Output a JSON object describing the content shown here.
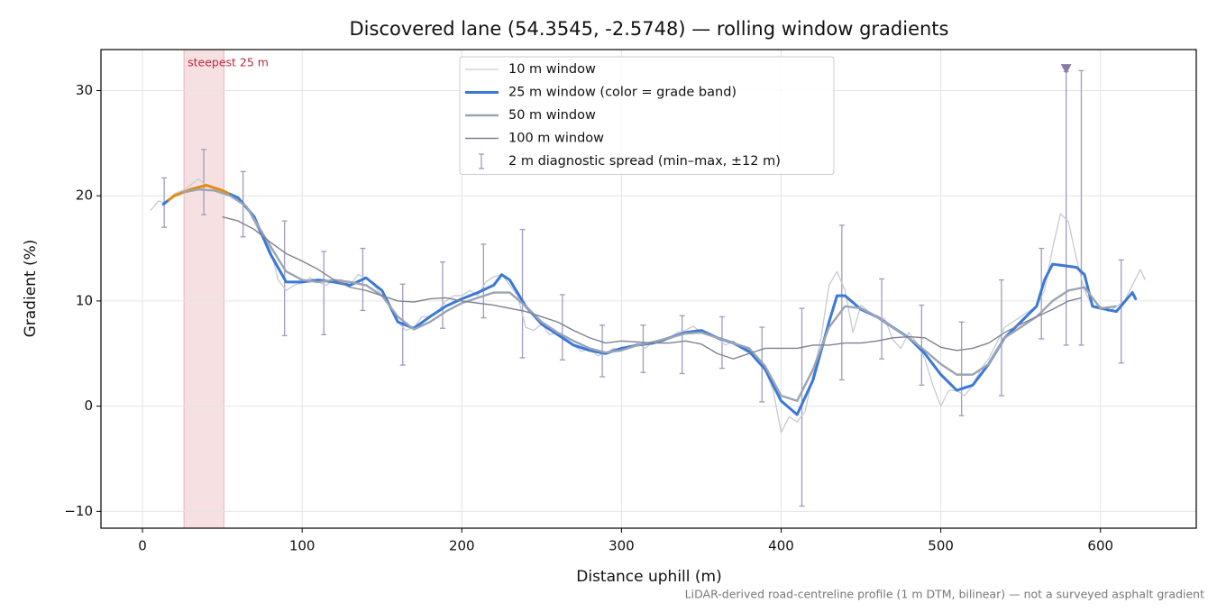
{
  "chart_data": {
    "type": "line",
    "title": "Discovered lane (54.3545, -2.5748) — rolling window gradients",
    "xlabel": "Distance uphill (m)",
    "ylabel": "Gradient (%)",
    "footnote": "LiDAR-derived road-centreline profile (1 m DTM, bilinear) — not a surveyed asphalt gradient",
    "xlim": [
      -26,
      660
    ],
    "ylim": [
      -11.6,
      33.9
    ],
    "xticks": [
      0,
      100,
      200,
      300,
      400,
      500,
      600
    ],
    "yticks": [
      {
        "value": -10,
        "label": "−10"
      },
      0,
      10,
      20,
      30
    ],
    "grid": true,
    "legend": "upper center",
    "highlight": {
      "x": [
        26,
        51
      ],
      "label": "steepest 25 m",
      "color": "#e8a6ad",
      "label_color": "#c0283a"
    },
    "series": [
      {
        "name": "10 m window",
        "color": "#c6cad2",
        "linewidth": 1.3,
        "x": [
          5,
          10,
          15,
          20,
          25,
          30,
          35,
          40,
          45,
          50,
          55,
          60,
          65,
          70,
          75,
          80,
          85,
          90,
          95,
          100,
          105,
          110,
          115,
          120,
          125,
          130,
          135,
          140,
          145,
          150,
          155,
          160,
          165,
          170,
          175,
          180,
          185,
          190,
          195,
          200,
          205,
          210,
          215,
          220,
          225,
          230,
          235,
          240,
          245,
          250,
          255,
          260,
          265,
          270,
          275,
          280,
          285,
          290,
          295,
          300,
          305,
          310,
          315,
          320,
          325,
          330,
          335,
          340,
          345,
          350,
          355,
          360,
          365,
          370,
          375,
          380,
          385,
          390,
          395,
          400,
          405,
          410,
          415,
          420,
          425,
          430,
          435,
          440,
          445,
          450,
          455,
          460,
          465,
          470,
          475,
          480,
          485,
          490,
          495,
          500,
          505,
          510,
          515,
          520,
          525,
          530,
          535,
          540,
          545,
          550,
          555,
          560,
          565,
          570,
          575,
          580,
          585,
          590,
          595,
          600,
          605,
          610,
          615,
          620,
          625,
          628
        ],
        "values": [
          18.6,
          19.5,
          19.3,
          20.2,
          20.5,
          21.0,
          21.6,
          21.0,
          20.8,
          20.5,
          20.0,
          19.8,
          19.0,
          17.5,
          16,
          15,
          12,
          11,
          11.5,
          11.7,
          12.2,
          11.8,
          11.5,
          12,
          12,
          11.5,
          12.5,
          12.2,
          11.5,
          10.5,
          9.5,
          8,
          7.2,
          7.5,
          8.5,
          8.5,
          9,
          10,
          10.5,
          10.5,
          11,
          10.5,
          11.8,
          12.3,
          12.5,
          11.5,
          10.5,
          7.5,
          7.2,
          7.8,
          6.8,
          7,
          6.5,
          5.8,
          5.2,
          5.5,
          4.8,
          5,
          5.5,
          5.3,
          5.5,
          6,
          5.5,
          6.2,
          6,
          6.5,
          7,
          7.2,
          7.6,
          7,
          6.8,
          6.5,
          5.8,
          6.2,
          5.5,
          5,
          4.5,
          3.5,
          1.5,
          -2.5,
          -1,
          -1.5,
          -0.5,
          3,
          6.5,
          11.5,
          12.8,
          11,
          7,
          9.6,
          9,
          8.5,
          8.3,
          6.3,
          5.5,
          7,
          6,
          4.5,
          2,
          0,
          1.5,
          1.5,
          1,
          2,
          3.5,
          4.5,
          6,
          7.5,
          8,
          8.5,
          9,
          9.5,
          11,
          15,
          18.3,
          17.5,
          14,
          11,
          9.5,
          9.5,
          9,
          9.5,
          10,
          11.5,
          13,
          12
        ]
      },
      {
        "name": "25 m window (color = grade band)",
        "color": "#3a78d8",
        "linewidth": 3,
        "x": [
          13,
          20,
          30,
          40,
          50,
          60,
          70,
          80,
          90,
          100,
          110,
          120,
          130,
          140,
          150,
          160,
          170,
          180,
          190,
          200,
          210,
          220,
          225,
          230,
          240,
          250,
          260,
          270,
          280,
          290,
          300,
          310,
          320,
          330,
          340,
          350,
          360,
          370,
          380,
          390,
          400,
          410,
          420,
          430,
          435,
          440,
          450,
          460,
          470,
          480,
          490,
          500,
          510,
          520,
          530,
          540,
          550,
          560,
          565,
          570,
          580,
          585,
          590,
          595,
          600,
          610,
          620,
          622
        ],
        "values": [
          19.2,
          20.0,
          20.6,
          21.0,
          20.5,
          19.8,
          18.0,
          14.5,
          11.8,
          11.8,
          12,
          11.8,
          11.5,
          12.2,
          11,
          8,
          7.4,
          8.5,
          9.5,
          10.2,
          10.8,
          11.5,
          12.5,
          12,
          9.5,
          7.8,
          6.8,
          5.8,
          5.3,
          5,
          5.5,
          5.8,
          6,
          6.5,
          7,
          7.2,
          6.5,
          6,
          5.2,
          3.5,
          0.5,
          -0.8,
          2.5,
          8,
          10.5,
          10.5,
          9.2,
          8.5,
          7.5,
          6.5,
          5,
          3,
          1.5,
          2,
          4,
          6.5,
          8,
          9.5,
          12,
          13.5,
          13.3,
          13.2,
          12.5,
          9.5,
          9.3,
          9,
          10.8,
          10.2
        ],
        "colors": [
          "#3a78d8",
          "#e38a12",
          "#e38a12",
          "#e38a12",
          "#e38a12",
          "#3a78d8",
          "#3a78d8",
          "#3a78d8",
          "#3a78d8",
          "#3a78d8",
          "#3a78d8",
          "#3a78d8",
          "#3a78d8",
          "#3a78d8",
          "#3a78d8",
          "#3a78d8",
          "#3a78d8",
          "#3a78d8",
          "#3a78d8",
          "#3a78d8",
          "#3a78d8",
          "#3a78d8",
          "#3a78d8",
          "#3a78d8",
          "#3a78d8",
          "#3a78d8",
          "#3a78d8",
          "#3a78d8",
          "#3a78d8",
          "#3a78d8",
          "#3a78d8",
          "#3a78d8",
          "#3a78d8",
          "#3a78d8",
          "#3a78d8",
          "#3a78d8",
          "#3a78d8",
          "#3a78d8",
          "#3a78d8",
          "#3a78d8",
          "#3a78d8",
          "#3a78d8",
          "#3a78d8",
          "#3a78d8",
          "#3a78d8",
          "#3a78d8",
          "#3a78d8",
          "#3a78d8",
          "#3a78d8",
          "#3a78d8",
          "#3a78d8",
          "#3a78d8",
          "#3a78d8",
          "#3a78d8",
          "#3a78d8",
          "#3a78d8",
          "#3a78d8",
          "#3a78d8",
          "#3a78d8",
          "#3a78d8",
          "#3a78d8",
          "#3a78d8",
          "#3a78d8",
          "#3a78d8",
          "#3a78d8",
          "#3a78d8",
          "#3a78d8",
          "#3a78d8"
        ]
      },
      {
        "name": "50 m window",
        "color": "#9aa4b4",
        "linewidth": 2.4,
        "x": [
          25,
          35,
          45,
          55,
          65,
          75,
          85,
          90,
          100,
          110,
          120,
          130,
          140,
          150,
          160,
          170,
          180,
          190,
          200,
          210,
          220,
          230,
          240,
          250,
          260,
          270,
          280,
          290,
          300,
          310,
          320,
          330,
          340,
          350,
          360,
          370,
          380,
          390,
          400,
          410,
          420,
          430,
          440,
          450,
          460,
          470,
          480,
          490,
          500,
          510,
          520,
          530,
          540,
          550,
          560,
          570,
          580,
          590,
          600,
          610
        ],
        "values": [
          20.3,
          20.6,
          20.5,
          20,
          19,
          16.5,
          14,
          12.8,
          12,
          11.8,
          12,
          11.8,
          11.5,
          10.5,
          8.5,
          7.3,
          8,
          9,
          9.8,
          10.3,
          10.8,
          10.8,
          9.5,
          8,
          7,
          6.2,
          5.5,
          5.1,
          5.3,
          5.8,
          6.1,
          6.5,
          6.9,
          7,
          6.5,
          6,
          5.5,
          3.8,
          1,
          0.5,
          3.5,
          7.5,
          9.5,
          9.3,
          8.5,
          7.5,
          6.5,
          5.3,
          4,
          3,
          3,
          4,
          6.5,
          7.5,
          8.5,
          10,
          11,
          11.3,
          9.3,
          9.5
        ]
      },
      {
        "name": "100 m window",
        "color": "#7d8290",
        "linewidth": 1.4,
        "x": [
          50,
          60,
          70,
          80,
          90,
          100,
          110,
          120,
          130,
          140,
          150,
          160,
          170,
          180,
          190,
          200,
          210,
          220,
          230,
          240,
          250,
          260,
          270,
          280,
          290,
          300,
          310,
          320,
          330,
          340,
          350,
          360,
          370,
          380,
          390,
          400,
          410,
          420,
          430,
          440,
          450,
          460,
          470,
          480,
          490,
          500,
          510,
          520,
          530,
          540,
          550,
          560,
          570,
          580,
          588
        ],
        "values": [
          18,
          17.6,
          16.8,
          15.6,
          14.5,
          13.8,
          13,
          12,
          11.3,
          11,
          10.5,
          10,
          9.9,
          10.2,
          10.3,
          10,
          9.8,
          9.6,
          9.3,
          9,
          8.5,
          8,
          7.2,
          6.5,
          6,
          6.2,
          6.1,
          6,
          6,
          6.2,
          5.9,
          5,
          4.5,
          5,
          5.5,
          5.5,
          5.5,
          5.8,
          5.8,
          6,
          6,
          6.2,
          6.5,
          6.6,
          6.5,
          5.6,
          5.3,
          5.5,
          6,
          7,
          7.8,
          8.5,
          9.2,
          10,
          10.3
        ]
      }
    ],
    "errorbars": {
      "name": "2 m diagnostic spread (min–max, ±12 m)",
      "color": "#a09bbe",
      "x": [
        13.6,
        38.4,
        63,
        89,
        113.6,
        138,
        163,
        188,
        213.6,
        238,
        263,
        288,
        313.6,
        338,
        363,
        388,
        413,
        438,
        463,
        488,
        513,
        538,
        563,
        578.5,
        588,
        613
      ],
      "lower": [
        17.0,
        18.2,
        16.1,
        6.7,
        6.8,
        9.1,
        3.9,
        7.4,
        8.4,
        4.6,
        4.4,
        2.8,
        3.2,
        3.1,
        3.6,
        0.4,
        -9.5,
        2.5,
        4.5,
        2.0,
        -0.9,
        1.0,
        6.4,
        5.8,
        5.8,
        4.1
      ],
      "upper": [
        21.7,
        24.4,
        22.3,
        17.6,
        14.7,
        15.0,
        11.6,
        13.7,
        15.4,
        16.8,
        10.6,
        7.7,
        7.7,
        8.6,
        8.5,
        7.5,
        9.3,
        17.2,
        12.1,
        9.6,
        8.0,
        12.0,
        15.0,
        31.8,
        31.9,
        13.9
      ]
    },
    "marker": {
      "x": 578.5,
      "y": 32,
      "color": "#8a7ba8"
    }
  }
}
